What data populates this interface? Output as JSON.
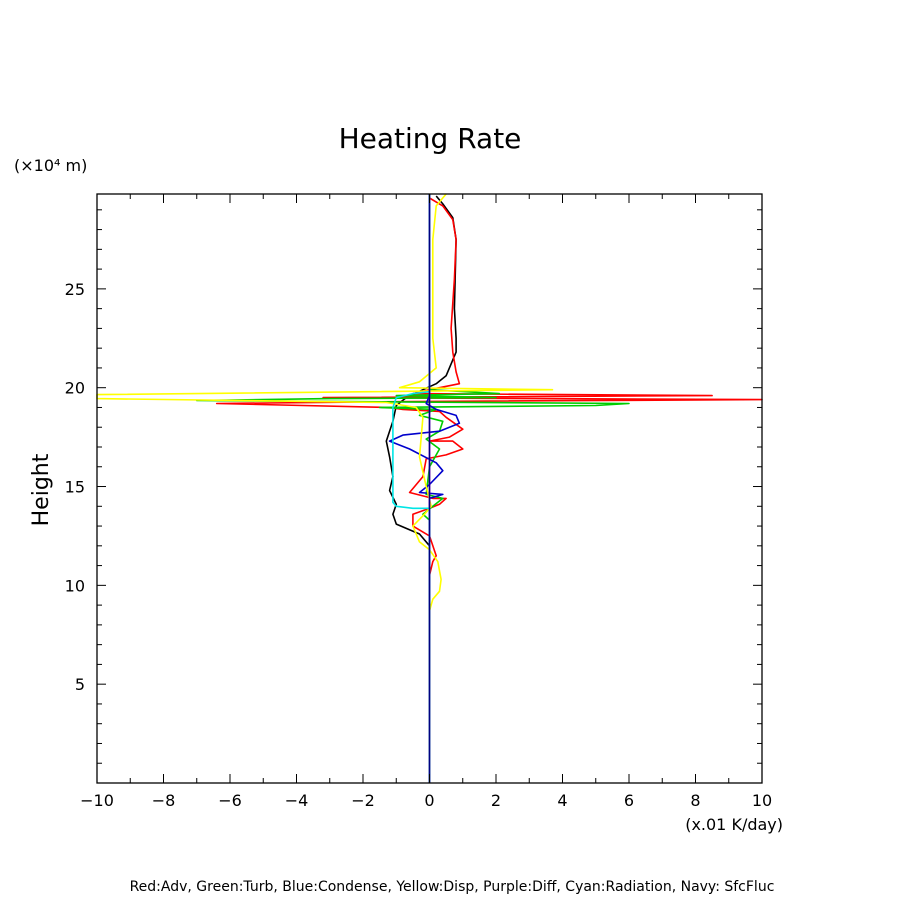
{
  "chart_data": {
    "type": "line",
    "title": "Heating Rate",
    "ylabel": "Height",
    "y_unit": "(×10⁴ m)",
    "x_unit": "(x.01 K/day)",
    "xlim": [
      -10,
      10
    ],
    "ylim": [
      0,
      29.8
    ],
    "x_ticks": [
      -10,
      -8,
      -6,
      -4,
      -2,
      0,
      2,
      4,
      6,
      8,
      10
    ],
    "x_tick_labels": [
      "−10",
      "−8",
      "−6",
      "−4",
      "−2",
      "0",
      "2",
      "4",
      "6",
      "8",
      "10"
    ],
    "y_ticks": [
      5,
      10,
      15,
      20,
      25
    ],
    "y_tick_labels": [
      "5",
      "10",
      "15",
      "20",
      "25"
    ],
    "legend_text": "Red:Adv, Green:Turb, Blue:Condense, Yellow:Disp, Purple:Diff, Cyan:Radiation, Navy: SfcFluc",
    "series": [
      {
        "color": "#000000",
        "points": [
          [
            0,
            0
          ],
          [
            0,
            12.0
          ],
          [
            -0.3,
            12.6
          ],
          [
            -1.0,
            13.1
          ],
          [
            -1.1,
            13.6
          ],
          [
            -1.0,
            14.1
          ],
          [
            -1.2,
            14.8
          ],
          [
            -1.1,
            15.5
          ],
          [
            -1.2,
            16.5
          ],
          [
            -1.3,
            17.3
          ],
          [
            -1.1,
            18.3
          ],
          [
            -1.0,
            19.1
          ],
          [
            -0.7,
            19.5
          ],
          [
            -0.2,
            19.9
          ],
          [
            0.2,
            20.2
          ],
          [
            0.5,
            20.6
          ],
          [
            0.8,
            21.8
          ],
          [
            0.8,
            22.5
          ],
          [
            0.75,
            24.0
          ],
          [
            0.8,
            27.5
          ],
          [
            0.7,
            28.6
          ],
          [
            0.4,
            29.3
          ],
          [
            0.2,
            29.7
          ]
        ]
      },
      {
        "color": "#ff0000",
        "points": [
          [
            0,
            0
          ],
          [
            0,
            10.5
          ],
          [
            0.1,
            11.2
          ],
          [
            0.2,
            11.5
          ],
          [
            0,
            12.5
          ],
          [
            -0.5,
            13.0
          ],
          [
            -0.5,
            13.6
          ],
          [
            0,
            13.9
          ],
          [
            0.3,
            14.1
          ],
          [
            0.5,
            14.4
          ],
          [
            0.1,
            14.4
          ],
          [
            -0.6,
            14.7
          ],
          [
            -0.2,
            15.5
          ],
          [
            -0.1,
            16.4
          ],
          [
            0.5,
            16.6
          ],
          [
            1.0,
            16.9
          ],
          [
            0.7,
            17.3
          ],
          [
            0.0,
            17.3
          ],
          [
            0.6,
            17.5
          ],
          [
            1.0,
            17.9
          ],
          [
            0.5,
            18.5
          ],
          [
            0.3,
            18.8
          ],
          [
            -0.8,
            18.9
          ],
          [
            -1.2,
            19.0
          ],
          [
            -6.4,
            19.2
          ],
          [
            -0.5,
            19.3
          ],
          [
            10,
            19.4
          ],
          [
            -3.2,
            19.5
          ],
          [
            8.5,
            19.6
          ],
          [
            -0.5,
            19.7
          ],
          [
            0.0,
            19.9
          ],
          [
            0.9,
            20.2
          ],
          [
            0.8,
            20.8
          ],
          [
            0.7,
            21.8
          ],
          [
            0.65,
            23.0
          ],
          [
            0.75,
            25.5
          ],
          [
            0.8,
            27.5
          ],
          [
            0.7,
            28.5
          ],
          [
            0.4,
            29.2
          ],
          [
            0.0,
            29.6
          ]
        ]
      },
      {
        "color": "#00cc00",
        "points": [
          [
            0,
            0
          ],
          [
            0,
            13.3
          ],
          [
            -0.2,
            13.6
          ],
          [
            0.1,
            14.0
          ],
          [
            0.4,
            14.4
          ],
          [
            -0.1,
            14.6
          ],
          [
            0,
            16.0
          ],
          [
            0.3,
            16.9
          ],
          [
            -0.1,
            17.4
          ],
          [
            0.3,
            17.8
          ],
          [
            0.4,
            18.3
          ],
          [
            -0.3,
            18.6
          ],
          [
            0.2,
            18.9
          ],
          [
            -1.5,
            19.0
          ],
          [
            5.0,
            19.1
          ],
          [
            6.0,
            19.2
          ],
          [
            -7.0,
            19.35
          ],
          [
            -3.0,
            19.45
          ],
          [
            2.0,
            19.5
          ],
          [
            -1.0,
            19.6
          ],
          [
            2.1,
            19.7
          ],
          [
            0,
            19.9
          ],
          [
            0,
            29.8
          ]
        ]
      },
      {
        "color": "#0000cc",
        "points": [
          [
            0,
            0
          ],
          [
            0,
            14.4
          ],
          [
            0.4,
            14.6
          ],
          [
            -0.3,
            14.7
          ],
          [
            0,
            15.1
          ],
          [
            0.4,
            15.8
          ],
          [
            0.2,
            16.2
          ],
          [
            -0.6,
            16.9
          ],
          [
            -1.2,
            17.3
          ],
          [
            -0.8,
            17.6
          ],
          [
            0.3,
            17.8
          ],
          [
            0.9,
            18.2
          ],
          [
            0.8,
            18.6
          ],
          [
            0.2,
            18.9
          ],
          [
            -0.1,
            19.2
          ],
          [
            0,
            19.6
          ],
          [
            0,
            29.8
          ]
        ]
      },
      {
        "color": "#ffff00",
        "points": [
          [
            0,
            0
          ],
          [
            0,
            8.7
          ],
          [
            0.1,
            9.3
          ],
          [
            0.3,
            9.7
          ],
          [
            0.35,
            10.3
          ],
          [
            0.25,
            11.2
          ],
          [
            0,
            11.8
          ],
          [
            -0.3,
            12.2
          ],
          [
            -0.5,
            13.0
          ],
          [
            -0.15,
            13.6
          ],
          [
            0.05,
            14.0
          ],
          [
            -0.1,
            15.0
          ],
          [
            -0.3,
            16.5
          ],
          [
            -0.25,
            17.5
          ],
          [
            -0.2,
            18.5
          ],
          [
            -0.4,
            19.0
          ],
          [
            -1.3,
            19.25
          ],
          [
            -10,
            19.45
          ],
          [
            -10,
            19.65
          ],
          [
            3.7,
            19.9
          ],
          [
            -0.9,
            20.0
          ],
          [
            -0.3,
            20.3
          ],
          [
            0.2,
            21.0
          ],
          [
            0.1,
            22.5
          ],
          [
            0.1,
            25.0
          ],
          [
            0.1,
            27.5
          ],
          [
            0.2,
            29.2
          ],
          [
            0.5,
            29.8
          ]
        ]
      },
      {
        "color": "#ff00ff",
        "points": [
          [
            0,
            0
          ],
          [
            0,
            29.8
          ]
        ]
      },
      {
        "color": "#00e5e5",
        "points": [
          [
            0,
            0
          ],
          [
            0,
            13.9
          ],
          [
            -0.5,
            13.9
          ],
          [
            -1.0,
            14.0
          ],
          [
            -1.1,
            14.2
          ],
          [
            -1.1,
            15.0
          ],
          [
            -1.1,
            16.0
          ],
          [
            -1.1,
            17.0
          ],
          [
            -1.1,
            18.0
          ],
          [
            -1.1,
            19.0
          ],
          [
            -1.0,
            19.5
          ],
          [
            -0.5,
            19.7
          ],
          [
            0,
            19.8
          ],
          [
            0,
            29.8
          ]
        ]
      },
      {
        "color": "#000080",
        "points": [
          [
            0,
            0
          ],
          [
            0,
            29.8
          ]
        ]
      }
    ]
  }
}
